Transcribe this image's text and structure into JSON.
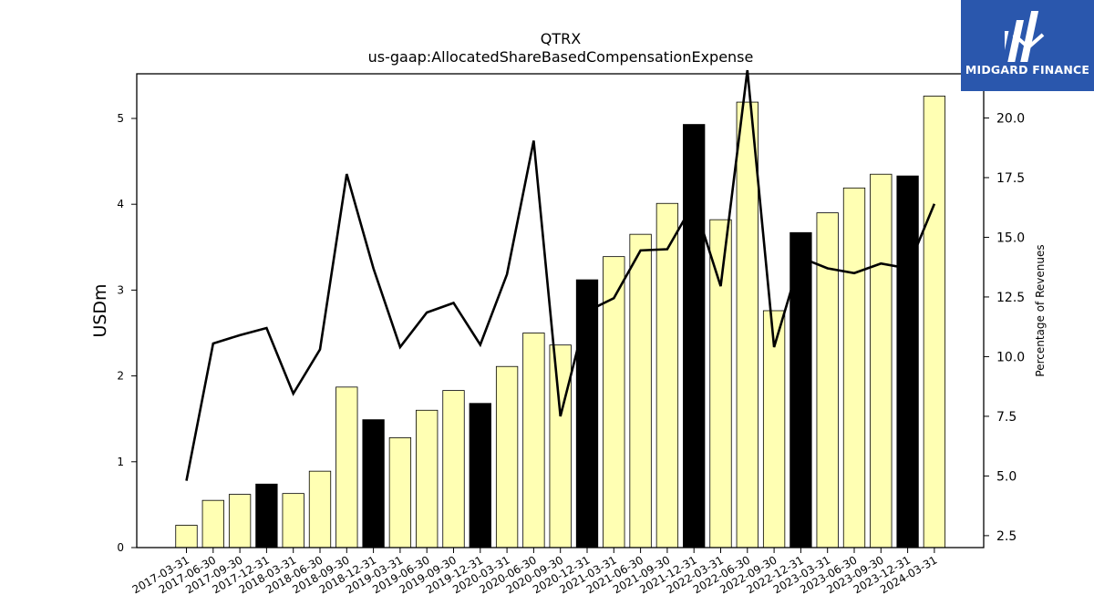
{
  "brand": {
    "name": "MIDGARD FINANCE",
    "color": "#2a57ad"
  },
  "chart_data": {
    "type": "bar",
    "title": "QTRX",
    "subtitle": "us-gaap:AllocatedShareBasedCompensationExpense",
    "ylabel": "USDm",
    "y2label": "Percentage of Revenues",
    "ylim": [
      0,
      5.52
    ],
    "y2lim": [
      2.0,
      21.85
    ],
    "yticks": [
      0,
      1,
      2,
      3,
      4,
      5
    ],
    "y2ticks": [
      "2.5",
      "5.0",
      "7.5",
      "10.0",
      "12.5",
      "15.0",
      "17.5",
      "20.0"
    ],
    "categories": [
      "2017-03-31",
      "2017-06-30",
      "2017-09-30",
      "2017-12-31",
      "2018-03-31",
      "2018-06-30",
      "2018-09-30",
      "2018-12-31",
      "2019-03-31",
      "2019-06-30",
      "2019-09-30",
      "2019-12-31",
      "2020-03-31",
      "2020-06-30",
      "2020-09-30",
      "2020-12-31",
      "2021-03-31",
      "2021-06-30",
      "2021-09-30",
      "2021-12-31",
      "2022-03-31",
      "2022-06-30",
      "2022-09-30",
      "2022-12-31",
      "2023-03-31",
      "2023-06-30",
      "2023-09-30",
      "2023-12-31",
      "2024-03-31"
    ],
    "series": [
      {
        "kind": "bar",
        "values": [
          0.26,
          0.55,
          0.62,
          0.74,
          0.63,
          0.89,
          1.87,
          1.49,
          1.28,
          1.6,
          1.83,
          1.68,
          2.11,
          2.5,
          2.36,
          3.12,
          3.39,
          3.65,
          4.01,
          4.93,
          3.82,
          5.19,
          2.76,
          3.67,
          3.9,
          4.19,
          4.35,
          4.33,
          5.26
        ],
        "colors": [
          "#ffffb3",
          "#ffffb3",
          "#ffffb3",
          "#000000",
          "#ffffb3",
          "#ffffb3",
          "#ffffb3",
          "#000000",
          "#ffffb3",
          "#ffffb3",
          "#ffffb3",
          "#000000",
          "#ffffb3",
          "#ffffb3",
          "#ffffb3",
          "#000000",
          "#ffffb3",
          "#ffffb3",
          "#ffffb3",
          "#000000",
          "#ffffb3",
          "#ffffb3",
          "#ffffb3",
          "#000000",
          "#ffffb3",
          "#ffffb3",
          "#ffffb3",
          "#000000",
          "#ffffb3"
        ]
      },
      {
        "kind": "line",
        "axis": "right",
        "color": "#000000",
        "values": [
          4.8,
          10.55,
          10.9,
          11.2,
          8.45,
          10.3,
          17.65,
          13.7,
          10.4,
          11.85,
          12.25,
          10.5,
          13.45,
          19.05,
          7.5,
          11.9,
          12.45,
          14.45,
          14.5,
          16.45,
          12.95,
          22.0,
          10.4,
          14.15,
          13.7,
          13.5,
          13.9,
          13.7,
          16.4
        ]
      }
    ],
    "grid": false,
    "legend": "none"
  }
}
